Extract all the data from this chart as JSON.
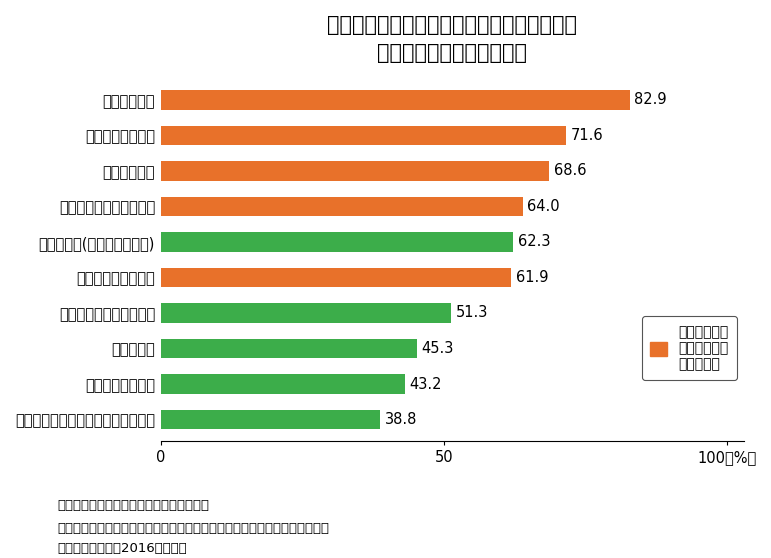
{
  "title_line1": "過疎地域等の多くの集落で発生している問題",
  "title_line2": "上位１０回答（複数回答）",
  "categories": [
    "空き家の増加",
    "耕作放棄地の増大",
    "働き口の減少",
    "商店・スーパー等の閉鎖",
    "住宅の荒廃(老朽家屋の増加)",
    "獣害・病虫害の発生",
    "公共交通の利便性の低下",
    "森林の荒廃",
    "伝統的祭事の衰退",
    "集落・地区で行ってきた行事の減少"
  ],
  "values": [
    82.9,
    71.6,
    68.6,
    64.0,
    62.3,
    61.9,
    51.3,
    45.3,
    43.2,
    38.8
  ],
  "colors": [
    "#E8712A",
    "#E8712A",
    "#E8712A",
    "#E8712A",
    "#3CAD4A",
    "#E8712A",
    "#3CAD4A",
    "#3CAD4A",
    "#3CAD4A",
    "#3CAD4A"
  ],
  "orange_color": "#E8712A",
  "green_color": "#3CAD4A",
  "legend_label": "は特に深刻な\n問題と回答が\nあったもの",
  "note_line1": "注：市町村担当者を対象とした調査結果。",
  "note_line2": "資料：国土交通省及び総務省「過疎地域等条件不利地域における集落の現況",
  "note_line3": "　　把握調査」（2016年３月）",
  "bg_color": "#FFFFFF",
  "bar_height": 0.55,
  "title_fontsize": 15,
  "label_fontsize": 10.5,
  "value_fontsize": 10.5,
  "tick_fontsize": 10.5,
  "note_fontsize": 9.5
}
